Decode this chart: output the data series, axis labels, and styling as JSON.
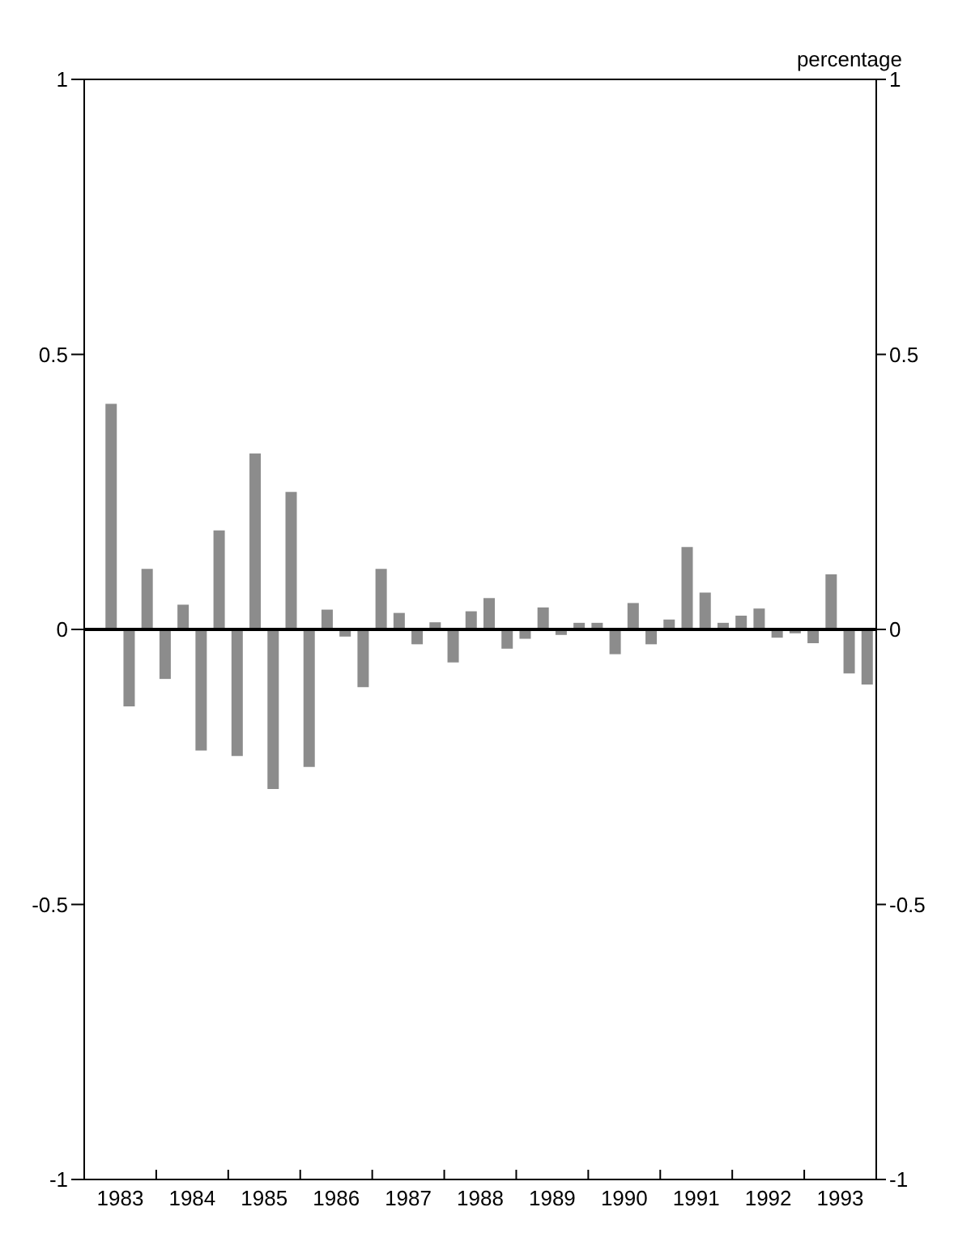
{
  "chart_data": {
    "type": "bar",
    "y2label": "percentage",
    "x": [
      1983.375,
      1983.625,
      1983.875,
      1984.125,
      1984.375,
      1984.625,
      1984.875,
      1985.125,
      1985.375,
      1985.625,
      1985.875,
      1986.125,
      1986.375,
      1986.625,
      1986.875,
      1987.125,
      1987.375,
      1987.625,
      1987.875,
      1988.125,
      1988.375,
      1988.625,
      1988.875,
      1989.125,
      1989.375,
      1989.625,
      1989.875,
      1990.125,
      1990.375,
      1990.625,
      1990.875,
      1991.125,
      1991.375,
      1991.625,
      1991.875,
      1992.125,
      1992.375,
      1992.625,
      1992.875,
      1993.125,
      1993.375,
      1993.625,
      1993.875
    ],
    "values": [
      0.41,
      -0.14,
      0.11,
      -0.09,
      0.045,
      -0.22,
      0.18,
      -0.23,
      0.32,
      -0.29,
      0.25,
      -0.25,
      0.036,
      -0.013,
      -0.105,
      0.11,
      0.03,
      -0.027,
      0.013,
      -0.06,
      0.033,
      0.057,
      -0.035,
      -0.017,
      0.04,
      -0.01,
      0.012,
      0.012,
      -0.045,
      0.048,
      -0.027,
      0.018,
      0.15,
      0.067,
      0.012,
      0.025,
      0.038,
      -0.015,
      -0.007,
      -0.025,
      0.1,
      -0.08,
      -0.1
    ],
    "color": "#8c8c8c",
    "xlim": [
      1983,
      1994
    ],
    "xticks": [
      {
        "value": 1983,
        "label": null
      },
      {
        "value": 1983.5,
        "label": "1983"
      },
      {
        "value": 1984,
        "label": null
      },
      {
        "value": 1984.5,
        "label": "1984"
      },
      {
        "value": 1985,
        "label": null
      },
      {
        "value": 1985.5,
        "label": "1985"
      },
      {
        "value": 1986,
        "label": null
      },
      {
        "value": 1986.5,
        "label": "1986"
      },
      {
        "value": 1987,
        "label": null
      },
      {
        "value": 1987.5,
        "label": "1987"
      },
      {
        "value": 1988,
        "label": null
      },
      {
        "value": 1988.5,
        "label": "1988"
      },
      {
        "value": 1989,
        "label": null
      },
      {
        "value": 1989.5,
        "label": "1989"
      },
      {
        "value": 1990,
        "label": null
      },
      {
        "value": 1990.5,
        "label": "1990"
      },
      {
        "value": 1991,
        "label": null
      },
      {
        "value": 1991.5,
        "label": "1991"
      },
      {
        "value": 1992,
        "label": null
      },
      {
        "value": 1992.5,
        "label": "1992"
      },
      {
        "value": 1993,
        "label": null
      },
      {
        "value": 1993.5,
        "label": "1993"
      },
      {
        "value": 1994,
        "label": null
      }
    ],
    "ylim": [
      -1,
      1
    ],
    "yticks": [
      -1,
      -0.5,
      0,
      0.5,
      1
    ],
    "y2lim": [
      -1,
      1
    ],
    "y2ticks": [
      -1,
      -0.5,
      0,
      0.5,
      1
    ],
    "ref_lines": [
      {
        "axis": "y",
        "value": 0
      }
    ],
    "grid": false,
    "legend": false
  }
}
